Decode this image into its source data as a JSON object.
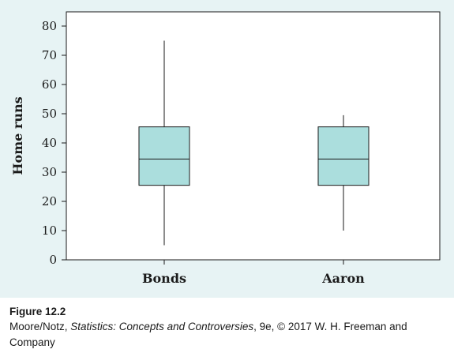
{
  "chart_data": {
    "type": "boxplot",
    "title": "",
    "xlabel": "",
    "ylabel": "Home runs",
    "ylim": [
      0,
      85
    ],
    "yticks": [
      0,
      10,
      20,
      30,
      40,
      50,
      60,
      70,
      80
    ],
    "grid": false,
    "categories": [
      "Bonds",
      "Aaron"
    ],
    "boxes": [
      {
        "category": "Bonds",
        "min": 5,
        "q1": 25.5,
        "median": 34.5,
        "q3": 45.5,
        "max": 75
      },
      {
        "category": "Aaron",
        "min": 10,
        "q1": 25.5,
        "median": 34.5,
        "q3": 45.5,
        "max": 49.5
      }
    ],
    "colors": {
      "box_fill": "#abdedd",
      "panel_bg": "#e7f3f4",
      "plot_bg": "#ffffff",
      "ink": "#1a1a1a"
    }
  },
  "caption": {
    "figure_label": "Figure 12.2",
    "credit_prefix": "Moore/Notz, ",
    "credit_title": "Statistics: Concepts and Controversies",
    "credit_suffix": ", 9e, © 2017 W. H. Freeman and Company"
  }
}
